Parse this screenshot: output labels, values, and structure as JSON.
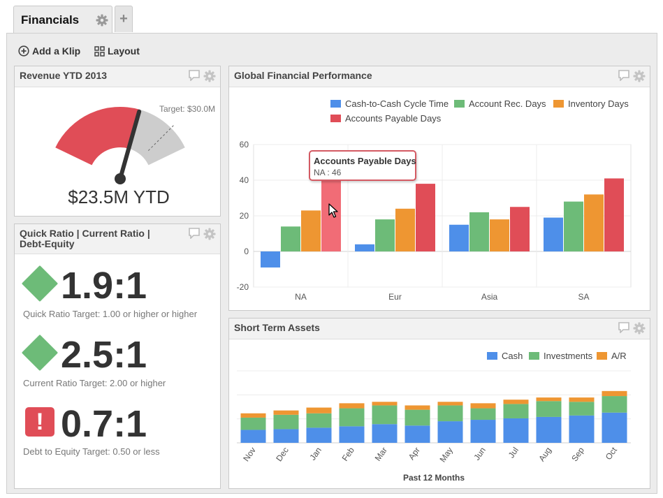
{
  "tabs": {
    "active_label": "Financials",
    "add_label": "+"
  },
  "toolbar": {
    "add_klip": "Add a Klip",
    "layout": "Layout"
  },
  "colors": {
    "blue": "#4e8fe9",
    "green": "#6dbb78",
    "orange": "#ee9632",
    "red": "#e04d57",
    "red_hover": "#f16c76"
  },
  "revenue": {
    "title": "Revenue YTD 2013",
    "target_label": "Target: $30.0M",
    "value_label": "$23.5M YTD",
    "value": 23.5,
    "target": 30.0
  },
  "ratios": {
    "title_line1": "Quick Ratio | Current Ratio |",
    "title_line2": "Debt-Equity",
    "items": [
      {
        "value": "1.9:1",
        "target": "Quick Ratio Target: 1.00 or higher or higher",
        "status": "ok"
      },
      {
        "value": "2.5:1",
        "target": "Current Ratio Target: 2.00 or higher",
        "status": "ok"
      },
      {
        "value": "0.7:1",
        "target": "Debt to Equity Target: 0.50 or less",
        "status": "alert",
        "alert_glyph": "!"
      }
    ]
  },
  "gfp": {
    "title": "Global Financial Performance",
    "tooltip_title": "Accounts Payable Days",
    "tooltip_value": "NA : 46"
  },
  "sta": {
    "title": "Short Term Assets"
  },
  "chart_data": [
    {
      "type": "bar",
      "title": "Global Financial Performance",
      "categories": [
        "NA",
        "Eur",
        "Asia",
        "SA"
      ],
      "series": [
        {
          "name": "Cash-to-Cash Cycle Time",
          "values": [
            -9,
            4,
            15,
            19
          ]
        },
        {
          "name": "Account Rec. Days",
          "values": [
            14,
            18,
            22,
            28
          ]
        },
        {
          "name": "Inventory Days",
          "values": [
            23,
            24,
            18,
            32
          ]
        },
        {
          "name": "Accounts Payable Days",
          "values": [
            46,
            38,
            25,
            41
          ]
        }
      ],
      "ylim": [
        -20,
        60
      ],
      "yticks": [
        "60",
        "40",
        "20",
        "0",
        "-20"
      ],
      "legend": "top-right",
      "grid": true
    },
    {
      "type": "bar",
      "stacked": true,
      "title": "Short Term Assets",
      "xlabel": "Past 12 Months",
      "categories": [
        "Nov",
        "Dec",
        "Jan",
        "Feb",
        "Mar",
        "Apr",
        "May",
        "Jun",
        "Jul",
        "Aug",
        "Sep",
        "Oct"
      ],
      "series": [
        {
          "name": "Cash",
          "values": [
            18,
            19,
            21,
            23,
            26,
            24,
            30,
            32,
            34,
            36,
            38,
            42
          ]
        },
        {
          "name": "Investments",
          "values": [
            17,
            20,
            20,
            25,
            26,
            22,
            22,
            16,
            20,
            22,
            19,
            23
          ]
        },
        {
          "name": "A/R",
          "values": [
            6,
            6,
            8,
            7,
            5,
            6,
            5,
            7,
            6,
            5,
            6,
            7
          ]
        }
      ],
      "ylim": [
        0,
        100
      ],
      "legend": "top-right",
      "grid": true
    }
  ]
}
